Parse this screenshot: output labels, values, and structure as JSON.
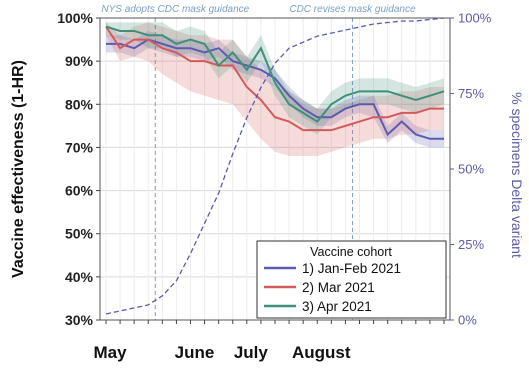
{
  "chart_data": {
    "type": "line",
    "ylabel": "Vaccine effectiveness (1-HR)",
    "y2label": "% specimens Delta variant",
    "ylim": [
      30,
      100
    ],
    "y2lim": [
      0,
      100
    ],
    "yticks": [
      "30%",
      "40%",
      "50%",
      "60%",
      "70%",
      "80%",
      "90%",
      "100%"
    ],
    "y2ticks": [
      "0%",
      "25%",
      "50%",
      "75%",
      "100%"
    ],
    "x_labels": [
      "May",
      "June",
      "July",
      "August"
    ],
    "annotations": [
      "NYS adopts CDC mask guidance",
      "CDC revises mask guidance"
    ],
    "legend_title": "Vaccine cohort",
    "legend_position": "bottom-right",
    "grid": true,
    "weeks": [
      1,
      2,
      3,
      4,
      5,
      6,
      7,
      8,
      9,
      10,
      11,
      12,
      13,
      14,
      15,
      16,
      17,
      18,
      19,
      20,
      21,
      22,
      23,
      24,
      25
    ],
    "series": [
      {
        "name": "1) Jan-Feb 2021",
        "color": "#5b5bb0",
        "values": [
          94,
          94,
          93,
          95,
          94,
          93,
          93,
          92,
          93,
          90,
          89,
          88,
          86,
          82,
          79,
          77,
          77,
          79,
          80,
          80,
          73,
          76,
          73,
          72,
          72
        ],
        "lower": [
          92,
          92,
          91,
          93,
          92,
          91,
          91,
          90,
          91,
          88,
          87,
          86,
          84,
          80,
          77,
          75,
          75,
          77,
          78,
          77,
          71,
          74,
          71,
          70,
          70
        ],
        "upper": [
          96,
          96,
          95,
          97,
          96,
          95,
          95,
          94,
          95,
          92,
          91,
          90,
          88,
          84,
          81,
          79,
          79,
          81,
          82,
          82,
          75,
          78,
          75,
          74,
          74
        ]
      },
      {
        "name": "2) Mar 2021",
        "color": "#d45a5a",
        "values": [
          98,
          93,
          95,
          95,
          93,
          92,
          90,
          90,
          89,
          89,
          84,
          81,
          77,
          76,
          74,
          74,
          74,
          75,
          76,
          77,
          77,
          78,
          78,
          79,
          79
        ],
        "lower": [
          96,
          90,
          91,
          90,
          87,
          85,
          83,
          82,
          81,
          80,
          76,
          72,
          69,
          68,
          68,
          68,
          69,
          70,
          71,
          72,
          72,
          73,
          73,
          74,
          74
        ],
        "upper": [
          99,
          96,
          98,
          99,
          98,
          97,
          96,
          96,
          95,
          95,
          91,
          88,
          84,
          83,
          80,
          79,
          79,
          80,
          81,
          82,
          82,
          83,
          83,
          84,
          84
        ]
      },
      {
        "name": "3) Apr 2021",
        "color": "#3f8f7a",
        "values": [
          98,
          97,
          97,
          96,
          96,
          94,
          95,
          94,
          89,
          92,
          88,
          93,
          85,
          80,
          78,
          76,
          80,
          82,
          83,
          83,
          83,
          82,
          81,
          82,
          83
        ],
        "lower": [
          96,
          95,
          95,
          93,
          93,
          91,
          92,
          91,
          86,
          89,
          85,
          90,
          82,
          77,
          75,
          73,
          77,
          79,
          80,
          80,
          80,
          79,
          78,
          79,
          80
        ],
        "upper": [
          99,
          99,
          99,
          99,
          99,
          97,
          98,
          97,
          92,
          95,
          91,
          96,
          88,
          83,
          81,
          79,
          83,
          85,
          86,
          86,
          86,
          85,
          84,
          85,
          86
        ]
      }
    ],
    "delta_series": {
      "name": "% specimens Delta variant",
      "color": "#5b5bb0",
      "values": [
        2,
        3,
        4,
        5,
        8,
        13,
        22,
        32,
        42,
        55,
        67,
        77,
        85,
        90,
        92,
        94,
        95,
        96,
        97,
        98,
        98.5,
        99,
        99,
        99.5,
        100
      ]
    }
  }
}
